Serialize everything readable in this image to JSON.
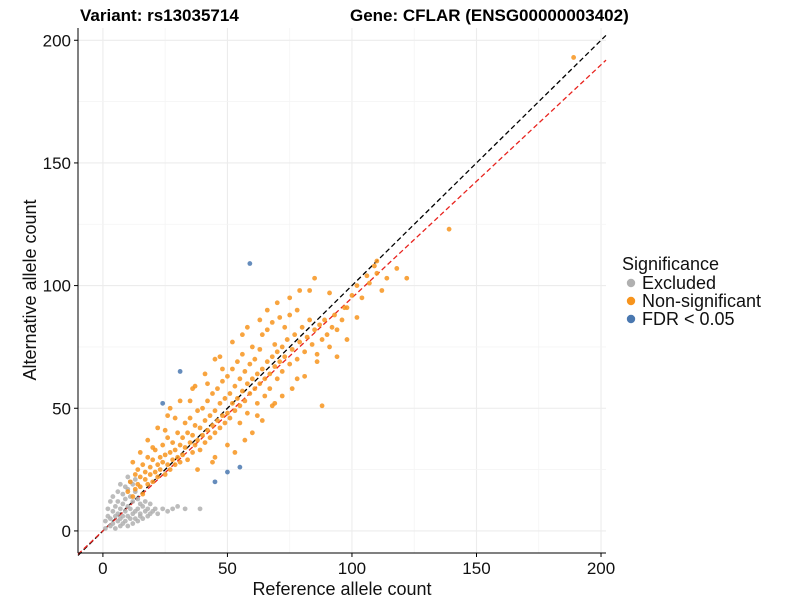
{
  "chart_data": {
    "type": "scatter",
    "title_variant": "Variant: rs13035714",
    "title_gene": "Gene: CFLAR (ENSG00000003402)",
    "xlabel": "Reference allele count",
    "ylabel": "Alternative allele count",
    "xlim": [
      -10,
      202
    ],
    "ylim": [
      -9,
      205
    ],
    "x_ticks": [
      0,
      50,
      100,
      150,
      200
    ],
    "y_ticks": [
      0,
      50,
      100,
      150,
      200
    ],
    "grid": true,
    "legend": {
      "title": "Significance",
      "position": "right",
      "entries": [
        {
          "label": "Excluded",
          "color": "#b0b0b0"
        },
        {
          "label": "Non-significant",
          "color": "#f7941d"
        },
        {
          "label": "FDR < 0.05",
          "color": "#4a78b0"
        }
      ]
    },
    "reference_lines": [
      {
        "name": "identity",
        "slope": 1.0,
        "intercept": 0,
        "color": "#000000",
        "dash": "dashed"
      },
      {
        "name": "fitted",
        "slope": 0.95,
        "intercept": 0,
        "color": "#e8231e",
        "dash": "dashed"
      }
    ],
    "series": [
      {
        "name": "Excluded",
        "color": "#b0b0b0",
        "points": [
          [
            1,
            1
          ],
          [
            1,
            4
          ],
          [
            2,
            6
          ],
          [
            3,
            2
          ],
          [
            3,
            5
          ],
          [
            4,
            8
          ],
          [
            4,
            3
          ],
          [
            5,
            1
          ],
          [
            5,
            6
          ],
          [
            5,
            10
          ],
          [
            6,
            4
          ],
          [
            6,
            7
          ],
          [
            6,
            12
          ],
          [
            7,
            2
          ],
          [
            7,
            5
          ],
          [
            7,
            9
          ],
          [
            8,
            3
          ],
          [
            8,
            6
          ],
          [
            8,
            11
          ],
          [
            8,
            15
          ],
          [
            9,
            4
          ],
          [
            9,
            8
          ],
          [
            9,
            13
          ],
          [
            10,
            2
          ],
          [
            10,
            6
          ],
          [
            10,
            10
          ],
          [
            10,
            17
          ],
          [
            11,
            5
          ],
          [
            11,
            9
          ],
          [
            11,
            14
          ],
          [
            12,
            3
          ],
          [
            12,
            7
          ],
          [
            12,
            12
          ],
          [
            12,
            19
          ],
          [
            13,
            5
          ],
          [
            13,
            8
          ],
          [
            13,
            16
          ],
          [
            14,
            4
          ],
          [
            14,
            9
          ],
          [
            14,
            13
          ],
          [
            15,
            6
          ],
          [
            15,
            11
          ],
          [
            15,
            7
          ],
          [
            16,
            5
          ],
          [
            16,
            10
          ],
          [
            17,
            8
          ],
          [
            17,
            12
          ],
          [
            18,
            6
          ],
          [
            18,
            9
          ],
          [
            19,
            7
          ],
          [
            19,
            11
          ],
          [
            20,
            8
          ],
          [
            21,
            9
          ],
          [
            22,
            7
          ],
          [
            24,
            9
          ],
          [
            26,
            8
          ],
          [
            28,
            9
          ],
          [
            30,
            10
          ],
          [
            33,
            9
          ],
          [
            39,
            9
          ],
          [
            2,
            9
          ],
          [
            3,
            12
          ],
          [
            4,
            14
          ],
          [
            6,
            16
          ],
          [
            9,
            18
          ],
          [
            11,
            20
          ],
          [
            7,
            19
          ],
          [
            13,
            21
          ],
          [
            10,
            22
          ]
        ]
      },
      {
        "name": "Non-significant",
        "color": "#f7941d",
        "points": [
          [
            10,
            16
          ],
          [
            11,
            20
          ],
          [
            12,
            14
          ],
          [
            13,
            23
          ],
          [
            13,
            17
          ],
          [
            14,
            19
          ],
          [
            14,
            25
          ],
          [
            15,
            18
          ],
          [
            15,
            22
          ],
          [
            16,
            27
          ],
          [
            16,
            15
          ],
          [
            17,
            21
          ],
          [
            17,
            24
          ],
          [
            18,
            19
          ],
          [
            18,
            30
          ],
          [
            19,
            23
          ],
          [
            19,
            26
          ],
          [
            20,
            20
          ],
          [
            20,
            29
          ],
          [
            21,
            24
          ],
          [
            21,
            33
          ],
          [
            22,
            22
          ],
          [
            22,
            27
          ],
          [
            23,
            30
          ],
          [
            23,
            25
          ],
          [
            24,
            28
          ],
          [
            24,
            35
          ],
          [
            25,
            23
          ],
          [
            25,
            31
          ],
          [
            26,
            27
          ],
          [
            26,
            38
          ],
          [
            27,
            32
          ],
          [
            27,
            25
          ],
          [
            28,
            29
          ],
          [
            28,
            36
          ],
          [
            29,
            33
          ],
          [
            29,
            27
          ],
          [
            30,
            40
          ],
          [
            30,
            30
          ],
          [
            31,
            35
          ],
          [
            31,
            28
          ],
          [
            32,
            38
          ],
          [
            32,
            31
          ],
          [
            33,
            44
          ],
          [
            33,
            34
          ],
          [
            34,
            29
          ],
          [
            34,
            40
          ],
          [
            35,
            36
          ],
          [
            35,
            46
          ],
          [
            36,
            32
          ],
          [
            36,
            39
          ],
          [
            37,
            43
          ],
          [
            37,
            35
          ],
          [
            38,
            49
          ],
          [
            38,
            37
          ],
          [
            39,
            33
          ],
          [
            39,
            42
          ],
          [
            40,
            39
          ],
          [
            40,
            50
          ],
          [
            41,
            36
          ],
          [
            41,
            45
          ],
          [
            42,
            41
          ],
          [
            42,
            53
          ],
          [
            43,
            38
          ],
          [
            43,
            47
          ],
          [
            44,
            43
          ],
          [
            44,
            56
          ],
          [
            45,
            40
          ],
          [
            45,
            49
          ],
          [
            46,
            45
          ],
          [
            46,
            58
          ],
          [
            47,
            42
          ],
          [
            47,
            52
          ],
          [
            48,
            47
          ],
          [
            48,
            61
          ],
          [
            49,
            44
          ],
          [
            49,
            54
          ],
          [
            50,
            48
          ],
          [
            50,
            63
          ],
          [
            51,
            46
          ],
          [
            51,
            56
          ],
          [
            52,
            52
          ],
          [
            52,
            66
          ],
          [
            53,
            49
          ],
          [
            53,
            59
          ],
          [
            54,
            54
          ],
          [
            54,
            69
          ],
          [
            55,
            51
          ],
          [
            55,
            62
          ],
          [
            56,
            57
          ],
          [
            56,
            72
          ],
          [
            57,
            53
          ],
          [
            57,
            65
          ],
          [
            58,
            60
          ],
          [
            58,
            48
          ],
          [
            59,
            56
          ],
          [
            59,
            68
          ],
          [
            60,
            62
          ],
          [
            60,
            75
          ],
          [
            61,
            58
          ],
          [
            61,
            70
          ],
          [
            62,
            64
          ],
          [
            62,
            52
          ],
          [
            63,
            60
          ],
          [
            63,
            74
          ],
          [
            64,
            66
          ],
          [
            64,
            80
          ],
          [
            65,
            62
          ],
          [
            65,
            55
          ],
          [
            66,
            69
          ],
          [
            66,
            82
          ],
          [
            67,
            64
          ],
          [
            67,
            58
          ],
          [
            68,
            71
          ],
          [
            68,
            85
          ],
          [
            69,
            67
          ],
          [
            69,
            76
          ],
          [
            70,
            73
          ],
          [
            70,
            62
          ],
          [
            71,
            69
          ],
          [
            71,
            87
          ],
          [
            72,
            75
          ],
          [
            72,
            65
          ],
          [
            73,
            71
          ],
          [
            73,
            83
          ],
          [
            74,
            78
          ],
          [
            75,
            68
          ],
          [
            75,
            88
          ],
          [
            76,
            74
          ],
          [
            77,
            80
          ],
          [
            78,
            70
          ],
          [
            78,
            90
          ],
          [
            79,
            77
          ],
          [
            80,
            83
          ],
          [
            81,
            73
          ],
          [
            82,
            79
          ],
          [
            83,
            86
          ],
          [
            84,
            76
          ],
          [
            85,
            82
          ],
          [
            86,
            72
          ],
          [
            87,
            84
          ],
          [
            88,
            78
          ],
          [
            89,
            86
          ],
          [
            90,
            80
          ],
          [
            91,
            75
          ],
          [
            92,
            83
          ],
          [
            93,
            88
          ],
          [
            94,
            82
          ],
          [
            96,
            86
          ],
          [
            98,
            91
          ],
          [
            100,
            96
          ],
          [
            102,
            100
          ],
          [
            104,
            95
          ],
          [
            106,
            104
          ],
          [
            107,
            101
          ],
          [
            109,
            108
          ],
          [
            110,
            110
          ],
          [
            112,
            98
          ],
          [
            114,
            103
          ],
          [
            118,
            107
          ],
          [
            122,
            103
          ],
          [
            139,
            123
          ],
          [
            189,
            193
          ],
          [
            85,
            103
          ],
          [
            79,
            98
          ],
          [
            70,
            93
          ],
          [
            63,
            86
          ],
          [
            58,
            83
          ],
          [
            52,
            77
          ],
          [
            47,
            71
          ],
          [
            41,
            64
          ],
          [
            37,
            59
          ],
          [
            31,
            53
          ],
          [
            26,
            47
          ],
          [
            22,
            42
          ],
          [
            18,
            37
          ],
          [
            15,
            32
          ],
          [
            12,
            28
          ],
          [
            68,
            51
          ],
          [
            88,
            51
          ],
          [
            76,
            58
          ],
          [
            60,
            40
          ],
          [
            50,
            35
          ],
          [
            45,
            30
          ],
          [
            38,
            25
          ],
          [
            55,
            44
          ],
          [
            62,
            47
          ],
          [
            72,
            55
          ],
          [
            81,
            63
          ],
          [
            94,
            71
          ],
          [
            102,
            87
          ],
          [
            98,
            78
          ],
          [
            42,
            60
          ],
          [
            48,
            66
          ],
          [
            35,
            53
          ],
          [
            29,
            46
          ],
          [
            25,
            41
          ],
          [
            20,
            34
          ],
          [
            83,
            98
          ],
          [
            91,
            97
          ],
          [
            97,
            91
          ],
          [
            110,
            105
          ],
          [
            75,
            95
          ],
          [
            66,
            90
          ],
          [
            56,
            80
          ],
          [
            45,
            70
          ],
          [
            36,
            58
          ],
          [
            27,
            50
          ],
          [
            53,
            32
          ],
          [
            57,
            37
          ],
          [
            44,
            28
          ],
          [
            64,
            45
          ],
          [
            69,
            52
          ],
          [
            78,
            62
          ],
          [
            86,
            69
          ]
        ]
      },
      {
        "name": "FDR < 0.05",
        "color": "#4a78b0",
        "points": [
          [
            59,
            109
          ],
          [
            31,
            65
          ],
          [
            24,
            52
          ],
          [
            55,
            26
          ],
          [
            50,
            24
          ],
          [
            45,
            20
          ]
        ]
      }
    ]
  }
}
